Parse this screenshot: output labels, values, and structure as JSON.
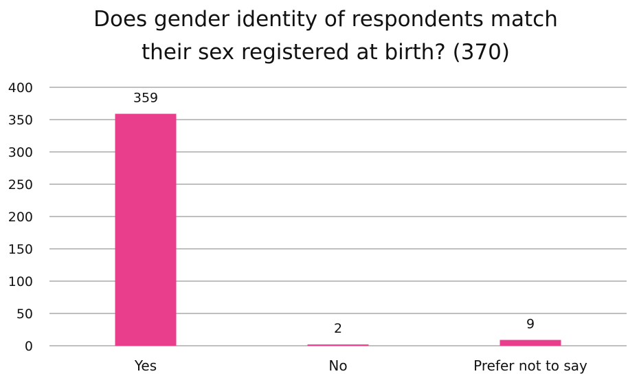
{
  "chart_data": {
    "type": "bar",
    "title_lines": [
      "Does gender identity of respondents match",
      "their sex registered at birth? (370)"
    ],
    "categories": [
      "Yes",
      "No",
      "Prefer not to say"
    ],
    "values": [
      359,
      2,
      9
    ],
    "value_labels": [
      "359",
      "2",
      "9"
    ],
    "ylim": [
      0,
      400
    ],
    "yticks": [
      0,
      50,
      100,
      150,
      200,
      250,
      300,
      350,
      400
    ],
    "ytick_labels": [
      "0",
      "50",
      "100",
      "150",
      "200",
      "250",
      "300",
      "350",
      "400"
    ],
    "grid": true,
    "legend": "none",
    "colors": {
      "bar": "#E83E8C",
      "grid": "#BFBFBF",
      "text": "#111111"
    }
  }
}
